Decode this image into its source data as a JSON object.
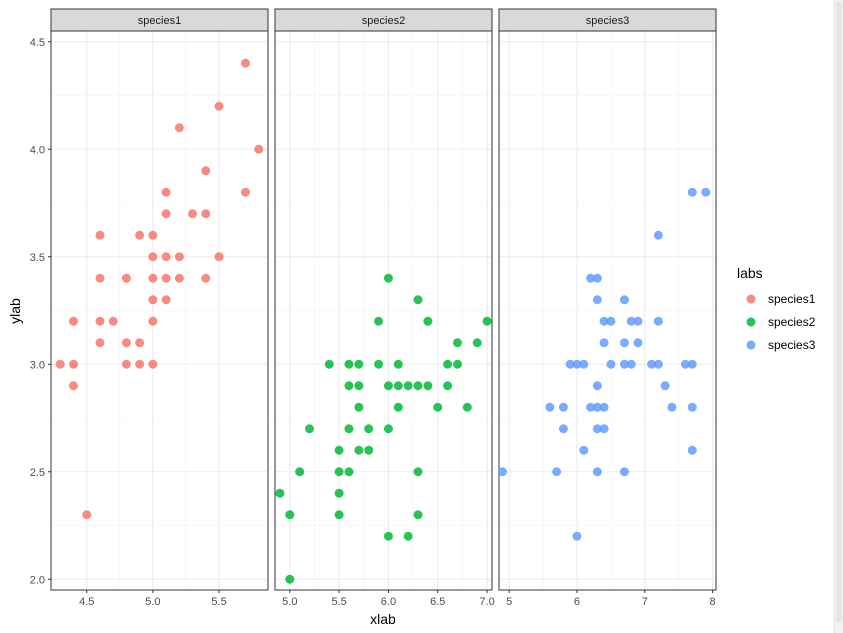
{
  "chart_data": {
    "type": "scatter",
    "layout": "facet-wrap",
    "xlabel": "xlab",
    "ylabel": "ylab",
    "ylim": [
      1.95,
      4.55
    ],
    "yticks": [
      2.0,
      2.5,
      3.0,
      3.5,
      4.0,
      4.5
    ],
    "grid": true,
    "theme": "bw",
    "legend": {
      "title": "labs",
      "placement": "right",
      "entries": [
        "species1",
        "species2",
        "species3"
      ]
    },
    "facets": [
      {
        "strip": "species1",
        "xlim": [
          4.23,
          5.87
        ],
        "xticks": [
          4.5,
          5.0,
          5.5
        ],
        "xtick_labels": [
          "4.5",
          "5.0",
          "5.5"
        ],
        "color": "#F8766D",
        "points": [
          [
            4.3,
            3.0
          ],
          [
            4.4,
            3.0
          ],
          [
            4.4,
            2.9
          ],
          [
            4.4,
            3.2
          ],
          [
            4.5,
            2.3
          ],
          [
            4.6,
            3.1
          ],
          [
            4.6,
            3.2
          ],
          [
            4.6,
            3.4
          ],
          [
            4.6,
            3.6
          ],
          [
            4.7,
            3.2
          ],
          [
            4.8,
            3.0
          ],
          [
            4.8,
            3.1
          ],
          [
            4.8,
            3.4
          ],
          [
            4.9,
            3.0
          ],
          [
            4.9,
            3.1
          ],
          [
            4.9,
            3.6
          ],
          [
            5.0,
            3.0
          ],
          [
            5.0,
            3.2
          ],
          [
            5.0,
            3.3
          ],
          [
            5.0,
            3.4
          ],
          [
            5.0,
            3.5
          ],
          [
            5.0,
            3.6
          ],
          [
            5.1,
            3.3
          ],
          [
            5.1,
            3.4
          ],
          [
            5.1,
            3.5
          ],
          [
            5.1,
            3.7
          ],
          [
            5.1,
            3.8
          ],
          [
            5.2,
            3.4
          ],
          [
            5.2,
            3.5
          ],
          [
            5.2,
            4.1
          ],
          [
            5.3,
            3.7
          ],
          [
            5.4,
            3.4
          ],
          [
            5.4,
            3.7
          ],
          [
            5.4,
            3.9
          ],
          [
            5.5,
            3.5
          ],
          [
            5.5,
            4.2
          ],
          [
            5.7,
            3.8
          ],
          [
            5.7,
            4.4
          ],
          [
            5.8,
            4.0
          ]
        ]
      },
      {
        "strip": "species2",
        "xlim": [
          4.85,
          7.05
        ],
        "xticks": [
          5.0,
          5.5,
          6.0,
          6.5,
          7.0
        ],
        "xtick_labels": [
          "5.0",
          "5.5",
          "6.0",
          "6.5",
          "7.0"
        ],
        "color": "#00BA38",
        "points": [
          [
            4.9,
            2.4
          ],
          [
            5.0,
            2.0
          ],
          [
            5.0,
            2.3
          ],
          [
            5.1,
            2.5
          ],
          [
            5.2,
            2.7
          ],
          [
            5.4,
            3.0
          ],
          [
            5.5,
            2.3
          ],
          [
            5.5,
            2.4
          ],
          [
            5.5,
            2.5
          ],
          [
            5.5,
            2.6
          ],
          [
            5.6,
            2.5
          ],
          [
            5.6,
            2.7
          ],
          [
            5.6,
            2.9
          ],
          [
            5.6,
            3.0
          ],
          [
            5.7,
            2.6
          ],
          [
            5.7,
            2.8
          ],
          [
            5.7,
            2.9
          ],
          [
            5.7,
            3.0
          ],
          [
            5.8,
            2.6
          ],
          [
            5.8,
            2.7
          ],
          [
            5.9,
            3.0
          ],
          [
            5.9,
            3.2
          ],
          [
            6.0,
            2.2
          ],
          [
            6.0,
            2.7
          ],
          [
            6.0,
            2.9
          ],
          [
            6.0,
            3.4
          ],
          [
            6.1,
            2.8
          ],
          [
            6.1,
            2.9
          ],
          [
            6.1,
            3.0
          ],
          [
            6.2,
            2.2
          ],
          [
            6.2,
            2.9
          ],
          [
            6.3,
            2.3
          ],
          [
            6.3,
            2.5
          ],
          [
            6.3,
            3.3
          ],
          [
            6.3,
            2.9
          ],
          [
            6.4,
            2.9
          ],
          [
            6.4,
            3.2
          ],
          [
            6.5,
            2.8
          ],
          [
            6.6,
            2.9
          ],
          [
            6.6,
            3.0
          ],
          [
            6.7,
            3.0
          ],
          [
            6.7,
            3.1
          ],
          [
            6.8,
            2.8
          ],
          [
            6.9,
            3.1
          ],
          [
            7.0,
            3.2
          ]
        ]
      },
      {
        "strip": "species3",
        "xlim": [
          4.85,
          8.05
        ],
        "xticks": [
          5,
          6,
          7,
          8
        ],
        "xtick_labels": [
          "5",
          "6",
          "7",
          "8"
        ],
        "color": "#619CFF",
        "points": [
          [
            4.9,
            2.5
          ],
          [
            5.6,
            2.8
          ],
          [
            5.7,
            2.5
          ],
          [
            5.8,
            2.7
          ],
          [
            5.8,
            2.8
          ],
          [
            5.9,
            3.0
          ],
          [
            6.0,
            2.2
          ],
          [
            6.0,
            3.0
          ],
          [
            6.1,
            2.6
          ],
          [
            6.1,
            3.0
          ],
          [
            6.2,
            2.8
          ],
          [
            6.2,
            3.4
          ],
          [
            6.3,
            2.5
          ],
          [
            6.3,
            2.7
          ],
          [
            6.3,
            2.8
          ],
          [
            6.3,
            2.9
          ],
          [
            6.3,
            3.3
          ],
          [
            6.3,
            3.4
          ],
          [
            6.4,
            2.7
          ],
          [
            6.4,
            2.8
          ],
          [
            6.4,
            3.1
          ],
          [
            6.4,
            3.2
          ],
          [
            6.5,
            3.0
          ],
          [
            6.5,
            3.2
          ],
          [
            6.7,
            2.5
          ],
          [
            6.7,
            3.0
          ],
          [
            6.7,
            3.1
          ],
          [
            6.7,
            3.3
          ],
          [
            6.8,
            3.0
          ],
          [
            6.8,
            3.2
          ],
          [
            6.9,
            3.1
          ],
          [
            6.9,
            3.2
          ],
          [
            7.1,
            3.0
          ],
          [
            7.2,
            3.0
          ],
          [
            7.2,
            3.2
          ],
          [
            7.2,
            3.6
          ],
          [
            7.3,
            2.9
          ],
          [
            7.4,
            2.8
          ],
          [
            7.6,
            3.0
          ],
          [
            7.7,
            2.6
          ],
          [
            7.7,
            2.8
          ],
          [
            7.7,
            3.0
          ],
          [
            7.7,
            3.8
          ],
          [
            7.9,
            3.8
          ]
        ]
      }
    ]
  }
}
